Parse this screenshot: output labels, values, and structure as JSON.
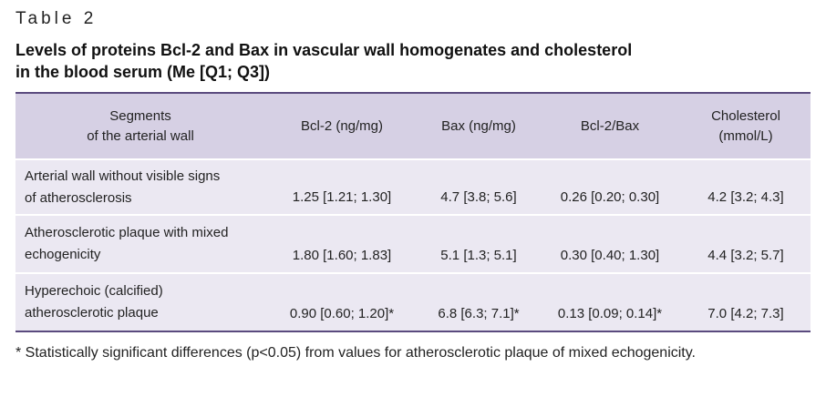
{
  "table_label": "Table 2",
  "title_line1": "Levels of proteins Bcl-2 and Bax in vascular wall homogenates and cholesterol",
  "title_line2": "in the blood serum (Me [Q1; Q3])",
  "headers": {
    "segments_l1": "Segments",
    "segments_l2": "of the arterial wall",
    "bcl2": "Bcl-2 (ng/mg)",
    "bax": "Bax (ng/mg)",
    "ratio": "Bcl-2/Bax",
    "chol_l1": "Cholesterol",
    "chol_l2": "(mmol/L)"
  },
  "rows": [
    {
      "segment_l1": "Arterial wall without visible signs",
      "segment_l2": "of atherosclerosis",
      "bcl2": "1.25 [1.21; 1.30]",
      "bax": "4.7 [3.8; 5.6]",
      "ratio": "0.26 [0.20; 0.30]",
      "chol": "4.2 [3.2; 4.3]"
    },
    {
      "segment_l1": "Atherosclerotic plaque with mixed",
      "segment_l2": "echogenicity",
      "bcl2": "1.80 [1.60; 1.83]",
      "bax": "5.1 [1.3; 5.1]",
      "ratio": "0.30 [0.40; 1.30]",
      "chol": "4.4 [3.2; 5.7]"
    },
    {
      "segment_l1": "Hyperechoic (calcified)",
      "segment_l2": "atherosclerotic plaque",
      "bcl2": "0.90 [0.60; 1.20]*",
      "bax": "6.8 [6.3; 7.1]*",
      "ratio": "0.13 [0.09; 0.14]*",
      "chol": "7.0 [4.2; 7.3]"
    }
  ],
  "footnote": "* Statistically significant differences (p<0.05) from values for atherosclerotic plaque of mixed echogenicity.",
  "colors": {
    "header_bg": "#d6d0e4",
    "row_bg": "#ebe8f2",
    "rule": "#5a4a7e"
  }
}
